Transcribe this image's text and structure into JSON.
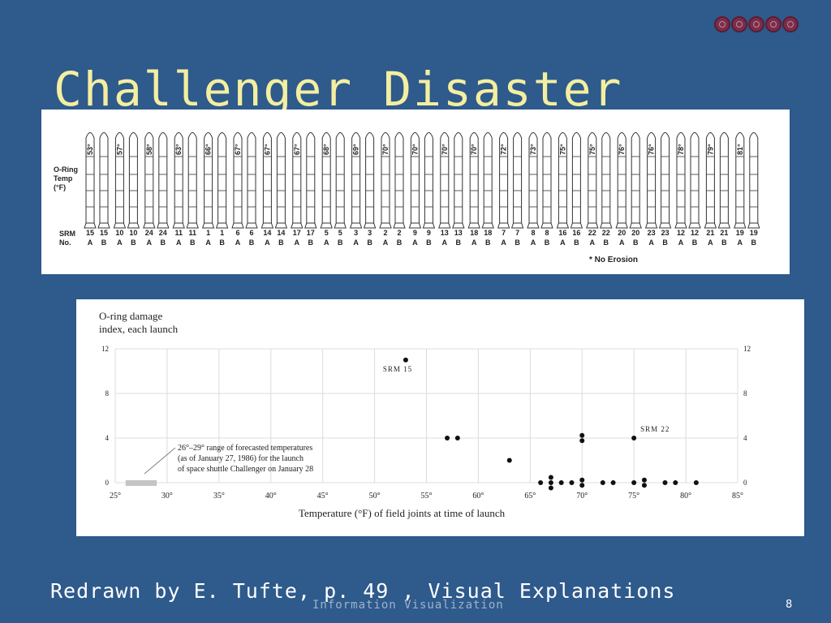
{
  "slide": {
    "title": "Challenger Disaster",
    "caption": "Redrawn by E. Tufte, p. 49 , Visual Explanations",
    "footer": "Information Visualization",
    "page_number": "8",
    "nav_icons": [
      "nav-icon",
      "nav-icon",
      "nav-icon",
      "nav-icon",
      "nav-icon"
    ]
  },
  "colors": {
    "background": "#2e5a8c",
    "title": "#f4eea0",
    "caption": "#ffffff"
  },
  "rocket_chart": {
    "temp_label_lines": [
      "O-Ring",
      "Temp",
      "(°F)"
    ],
    "srm_label_lines": [
      "SRM",
      "No."
    ],
    "note": "* No Erosion",
    "launches": [
      {
        "temp": "53°",
        "srm": [
          "15",
          "15"
        ]
      },
      {
        "temp": "57°",
        "srm": [
          "10",
          "10"
        ]
      },
      {
        "temp": "58°",
        "srm": [
          "24",
          "24"
        ]
      },
      {
        "temp": "63°",
        "srm": [
          "11",
          "11"
        ]
      },
      {
        "temp": "66°",
        "srm": [
          "1",
          "1"
        ]
      },
      {
        "temp": "67°",
        "srm": [
          "6",
          "6"
        ]
      },
      {
        "temp": "67°",
        "srm": [
          "14",
          "14"
        ]
      },
      {
        "temp": "67°",
        "srm": [
          "17",
          "17"
        ]
      },
      {
        "temp": "68°",
        "srm": [
          "5",
          "5"
        ]
      },
      {
        "temp": "69°",
        "srm": [
          "3",
          "3"
        ]
      },
      {
        "temp": "70°",
        "srm": [
          "2",
          "2"
        ]
      },
      {
        "temp": "70°",
        "srm": [
          "9",
          "9"
        ]
      },
      {
        "temp": "70°",
        "srm": [
          "13",
          "13"
        ]
      },
      {
        "temp": "70°",
        "srm": [
          "18",
          "18"
        ]
      },
      {
        "temp": "72°",
        "srm": [
          "7",
          "7"
        ]
      },
      {
        "temp": "73°",
        "srm": [
          "8",
          "8"
        ]
      },
      {
        "temp": "75°",
        "srm": [
          "16",
          "16"
        ]
      },
      {
        "temp": "75°",
        "srm": [
          "22",
          "22"
        ]
      },
      {
        "temp": "76°",
        "srm": [
          "20",
          "20"
        ]
      },
      {
        "temp": "76°",
        "srm": [
          "23",
          "23"
        ]
      },
      {
        "temp": "78°",
        "srm": [
          "12",
          "12"
        ]
      },
      {
        "temp": "79°",
        "srm": [
          "21",
          "21"
        ]
      },
      {
        "temp": "81°",
        "srm": [
          "19",
          "19"
        ]
      }
    ],
    "side_labels": [
      "A",
      "B"
    ]
  },
  "chart_data": {
    "type": "scatter",
    "title": "O-ring damage index, each launch",
    "title_lines": [
      "O-ring damage",
      "index, each launch"
    ],
    "xlabel": "Temperature (°F) of field joints at time of launch",
    "xlim": [
      25,
      85
    ],
    "ylim": [
      0,
      12
    ],
    "x_ticks": [
      "25°",
      "30°",
      "35°",
      "40°",
      "45°",
      "50°",
      "55°",
      "60°",
      "65°",
      "70°",
      "75°",
      "80°",
      "85°"
    ],
    "y_ticks": [
      "0",
      "4",
      "8",
      "12"
    ],
    "grid": true,
    "points": [
      {
        "x": 53,
        "y": 11
      },
      {
        "x": 57,
        "y": 4
      },
      {
        "x": 58,
        "y": 4
      },
      {
        "x": 63,
        "y": 2
      },
      {
        "x": 66,
        "y": 0
      },
      {
        "x": 67,
        "y": 0
      },
      {
        "x": 67,
        "y": 0
      },
      {
        "x": 67,
        "y": 0
      },
      {
        "x": 68,
        "y": 0
      },
      {
        "x": 69,
        "y": 0
      },
      {
        "x": 70,
        "y": 4
      },
      {
        "x": 70,
        "y": 4
      },
      {
        "x": 70,
        "y": 0
      },
      {
        "x": 70,
        "y": 0
      },
      {
        "x": 72,
        "y": 0
      },
      {
        "x": 73,
        "y": 0
      },
      {
        "x": 75,
        "y": 4
      },
      {
        "x": 75,
        "y": 0
      },
      {
        "x": 76,
        "y": 0
      },
      {
        "x": 76,
        "y": 0
      },
      {
        "x": 78,
        "y": 0
      },
      {
        "x": 79,
        "y": 0
      },
      {
        "x": 81,
        "y": 0
      }
    ],
    "annotations": [
      {
        "text": "SRM 15",
        "x": 53,
        "y": 11
      },
      {
        "text": "SRM 22",
        "x": 75,
        "y": 4
      }
    ],
    "forecast_range": [
      26,
      29
    ],
    "forecast_note": [
      "26°–29° range of forecasted temperatures",
      "(as of January 27, 1986) for the launch",
      "of space shuttle Challenger on January 28"
    ]
  }
}
